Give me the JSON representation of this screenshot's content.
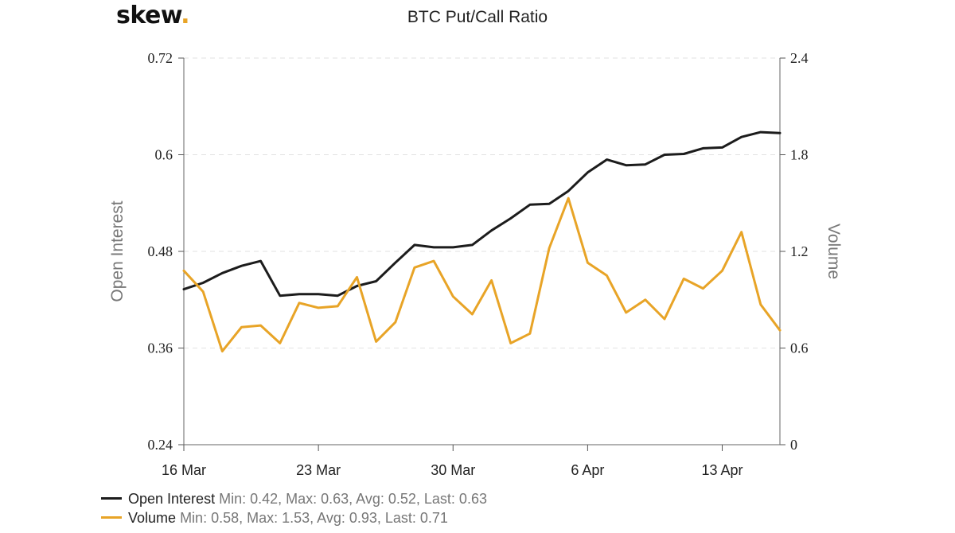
{
  "brand": {
    "name": "skew",
    "dot": "."
  },
  "chart_data": {
    "type": "line",
    "title": "BTC Put/Call Ratio",
    "x_labels": [
      "16 Mar",
      "23 Mar",
      "30 Mar",
      "6 Apr",
      "13 Apr"
    ],
    "x_label_dates": [
      "2020-03-16",
      "2020-03-23",
      "2020-03-30",
      "2020-04-06",
      "2020-04-13"
    ],
    "x_range": [
      "2020-03-16",
      "2020-04-16"
    ],
    "y_left": {
      "label": "Open Interest",
      "range": [
        0.24,
        0.72
      ],
      "ticks": [
        "0.24",
        "0.36",
        "0.48",
        "0.6",
        "0.72"
      ]
    },
    "y_right": {
      "label": "Volume",
      "range": [
        0,
        2.4
      ],
      "ticks": [
        "0",
        "0.6",
        "1.2",
        "1.8",
        "2.4"
      ]
    },
    "grid": true,
    "legend_position": "bottom-left",
    "x": [
      "2020-03-16",
      "2020-03-17",
      "2020-03-18",
      "2020-03-19",
      "2020-03-20",
      "2020-03-21",
      "2020-03-22",
      "2020-03-23",
      "2020-03-24",
      "2020-03-25",
      "2020-03-26",
      "2020-03-27",
      "2020-03-28",
      "2020-03-29",
      "2020-03-30",
      "2020-03-31",
      "2020-04-01",
      "2020-04-02",
      "2020-04-03",
      "2020-04-04",
      "2020-04-05",
      "2020-04-06",
      "2020-04-07",
      "2020-04-08",
      "2020-04-09",
      "2020-04-10",
      "2020-04-11",
      "2020-04-12",
      "2020-04-13",
      "2020-04-14",
      "2020-04-15",
      "2020-04-16"
    ],
    "series": [
      {
        "name": "Open Interest",
        "axis": "left",
        "color": "#1c1c1c",
        "values": [
          0.433,
          0.441,
          0.453,
          0.462,
          0.468,
          0.425,
          0.427,
          0.427,
          0.425,
          0.437,
          0.443,
          0.466,
          0.488,
          0.485,
          0.485,
          0.488,
          0.506,
          0.521,
          0.538,
          0.539,
          0.555,
          0.578,
          0.594,
          0.587,
          0.588,
          0.6,
          0.601,
          0.608,
          0.609,
          0.622,
          0.628,
          0.627
        ]
      },
      {
        "name": "Volume",
        "axis": "right",
        "color": "#e8a427",
        "values": [
          1.08,
          0.95,
          0.58,
          0.73,
          0.74,
          0.63,
          0.88,
          0.85,
          0.86,
          1.04,
          0.64,
          0.76,
          1.1,
          1.14,
          0.92,
          0.81,
          1.02,
          0.63,
          0.69,
          1.22,
          1.53,
          1.13,
          1.05,
          0.82,
          0.9,
          0.78,
          1.03,
          0.97,
          1.08,
          1.32,
          0.87,
          0.71
        ]
      }
    ],
    "legend_stats": [
      {
        "name": "Open Interest",
        "text": "Min: 0.42, Max: 0.63, Avg: 0.52, Last: 0.63"
      },
      {
        "name": "Volume",
        "text": "Min: 0.58, Max: 1.53, Avg: 0.93, Last: 0.71"
      }
    ]
  }
}
